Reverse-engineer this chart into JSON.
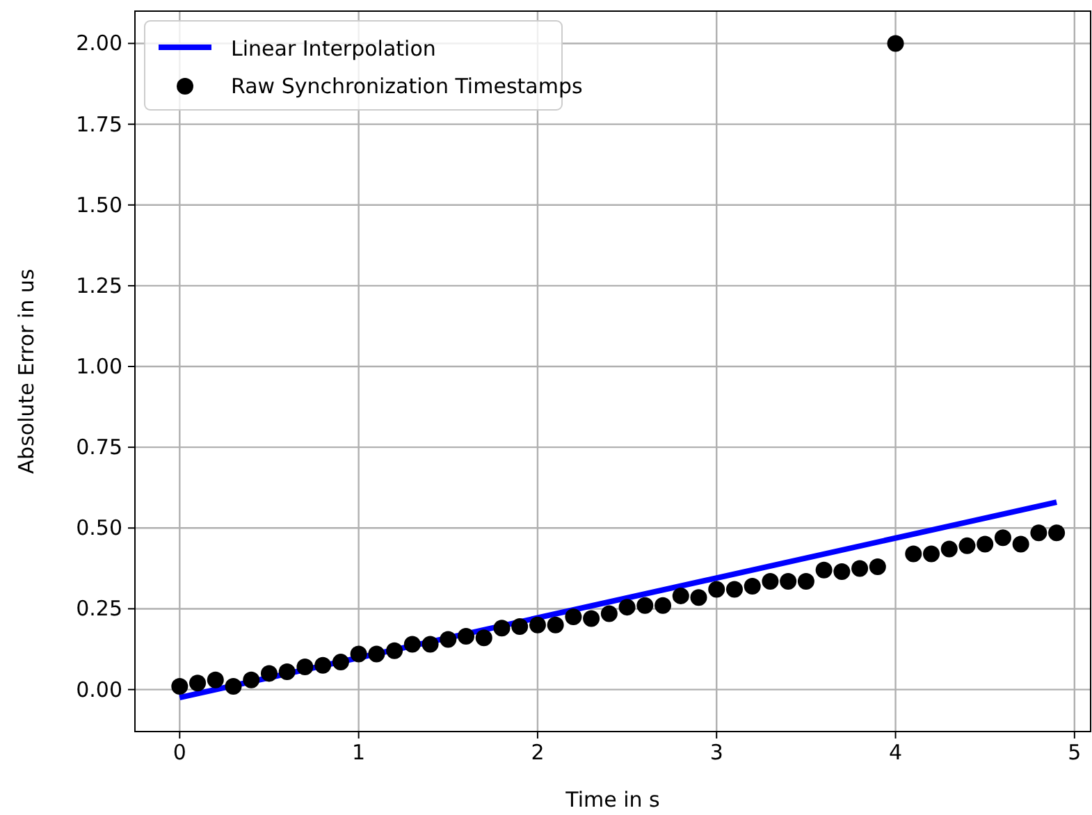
{
  "chart_data": {
    "type": "scatter",
    "xlabel": "Time in s",
    "ylabel": "Absolute Error in us",
    "xlim": [
      -0.25,
      5.09
    ],
    "xticks": [
      0,
      1,
      2,
      3,
      4,
      5
    ],
    "ylim": [
      -0.13,
      2.1
    ],
    "yticks": [
      {
        "value": 0,
        "label": "0.00"
      },
      {
        "value": 0.25,
        "label": "0.25"
      },
      {
        "value": 0.5,
        "label": "0.50"
      },
      {
        "value": 0.75,
        "label": "0.75"
      },
      {
        "value": 1,
        "label": "1.00"
      },
      {
        "value": 1.25,
        "label": "1.25"
      },
      {
        "value": 1.5,
        "label": "1.50"
      },
      {
        "value": 1.75,
        "label": "1.75"
      },
      {
        "value": 2,
        "label": "2.00"
      }
    ],
    "grid": true,
    "legend": "top left",
    "series": [
      {
        "name": "Linear Interpolation",
        "type": "line",
        "color": "#0000ff",
        "x": [
          0,
          4.9
        ],
        "values": [
          -0.025,
          0.58
        ]
      },
      {
        "name": "Raw Synchronization Timestamps",
        "marker": "circle",
        "color": "#000000",
        "x": [
          0,
          0.1,
          0.2,
          0.3,
          0.4,
          0.5,
          0.6,
          0.7,
          0.8,
          0.9,
          1.0,
          1.1,
          1.2,
          1.3,
          1.4,
          1.5,
          1.6,
          1.7,
          1.8,
          1.9,
          2.0,
          2.1,
          2.2,
          2.3,
          2.4,
          2.5,
          2.6,
          2.7,
          2.8,
          2.9,
          3.0,
          3.1,
          3.2,
          3.3,
          3.4,
          3.5,
          3.6,
          3.7,
          3.8,
          3.9,
          4.0,
          4.1,
          4.2,
          4.3,
          4.4,
          4.5,
          4.6,
          4.7,
          4.8,
          4.9
        ],
        "values": [
          0.01,
          0.02,
          0.03,
          0.01,
          0.03,
          0.05,
          0.055,
          0.07,
          0.075,
          0.085,
          0.11,
          0.11,
          0.12,
          0.14,
          0.14,
          0.155,
          0.165,
          0.16,
          0.19,
          0.195,
          0.2,
          0.2,
          0.225,
          0.22,
          0.235,
          0.255,
          0.26,
          0.26,
          0.29,
          0.285,
          0.31,
          0.31,
          0.32,
          0.335,
          0.335,
          0.335,
          0.37,
          0.365,
          0.375,
          0.38,
          2.0,
          0.42,
          0.42,
          0.435,
          0.445,
          0.45,
          0.47,
          0.45,
          0.485,
          0.485
        ]
      }
    ]
  }
}
